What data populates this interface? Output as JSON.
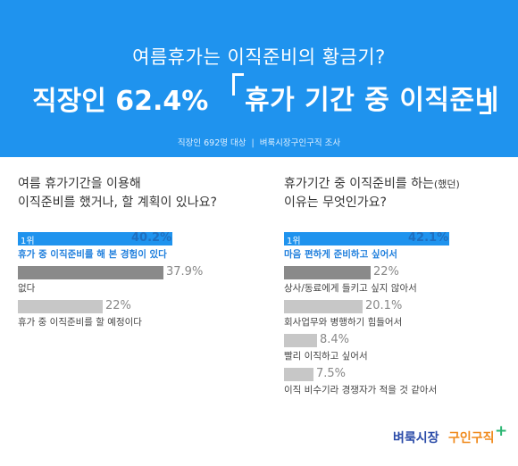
{
  "header": {
    "subtitle": "여름휴가는 이직준비의 황금기?",
    "main_left": "직장인 62.4%",
    "main_right": "휴가 기간 중 이직준비",
    "source_left": "직장인 692명 대상",
    "source_sep": "|",
    "source_right": "벼룩시장구인구직 조사"
  },
  "logo": {
    "part1": "벼룩시장",
    "part2": "구인구직",
    "plus": "+"
  },
  "colors": {
    "header_bg": "#1f93ee",
    "top_bar": "#1f93ee",
    "second_bar": "#8a8a8a",
    "other_bar": "#c7c7c7"
  },
  "chart_data": [
    {
      "type": "bar",
      "orientation": "horizontal",
      "question_line1": "여름 휴가기간을 이용해",
      "question_line2": "이직준비를 했거나, 할 계획이 있나요?",
      "rank_label": "1위",
      "categories": [
        "휴가 중 이직준비를 해 본 경험이 있다",
        "없다",
        "휴가 중 이직준비를 할 예정이다"
      ],
      "values": [
        40.2,
        37.9,
        22
      ],
      "value_labels": [
        "40.2%",
        "37.9%",
        "22%"
      ],
      "xlim": [
        0,
        40.2
      ]
    },
    {
      "type": "bar",
      "orientation": "horizontal",
      "question_line1_a": "휴가기간 중 이직준비를 하는",
      "question_line1_b": "(했던)",
      "question_line2": "이유는 무엇인가요?",
      "rank_label": "1위",
      "categories": [
        "마음 편하게 준비하고 싶어서",
        "상사/동료에게 들키고 싶지 않아서",
        "회사업무와 병행하기 힘들어서",
        "빨리 이직하고 싶어서",
        "이직 비수기라 경쟁자가 적을 것 같아서"
      ],
      "values": [
        42.1,
        22,
        20.1,
        8.4,
        7.5
      ],
      "value_labels": [
        "42.1%",
        "22%",
        "20.1%",
        "8.4%",
        "7.5%"
      ],
      "xlim": [
        0,
        42.1
      ]
    }
  ]
}
